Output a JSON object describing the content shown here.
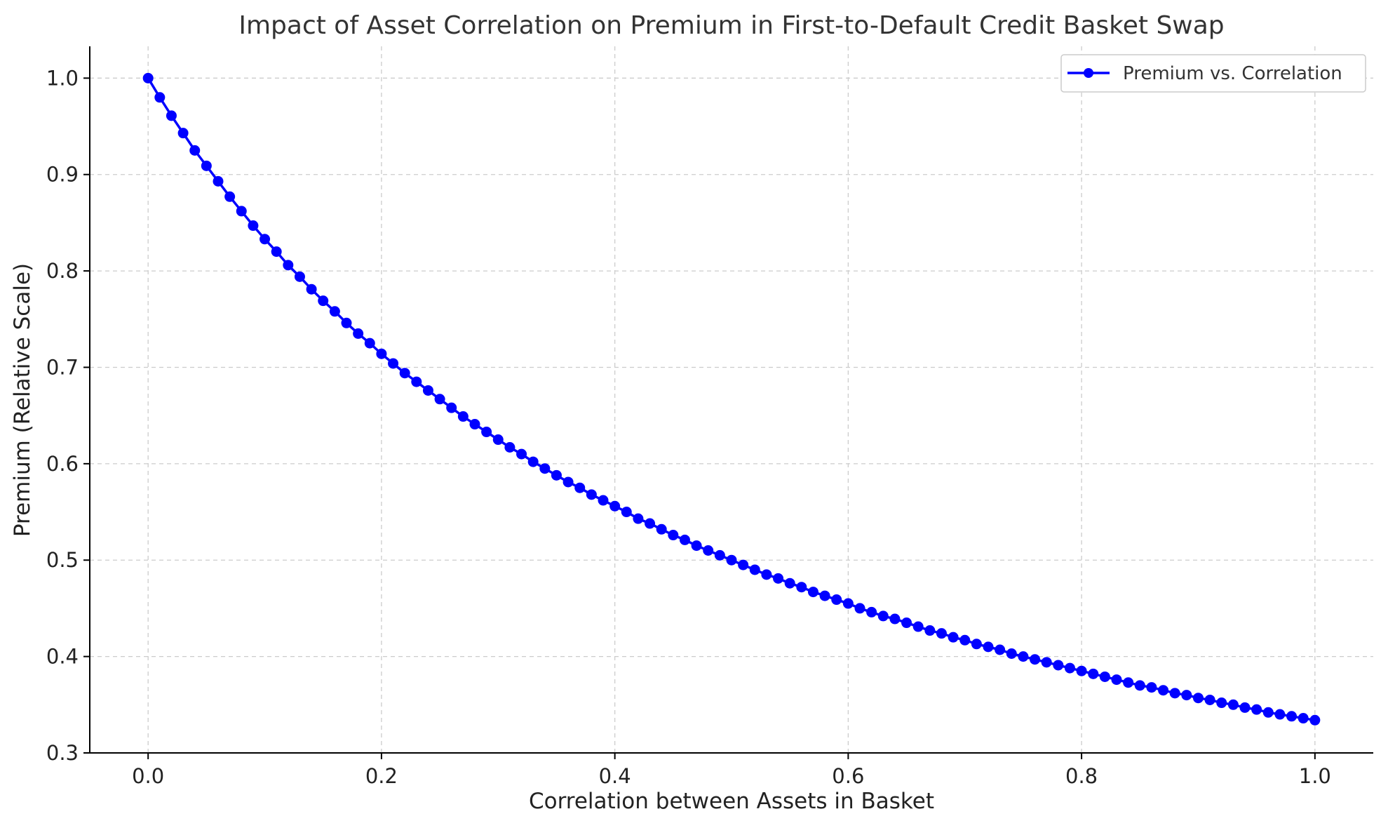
{
  "chart_data": {
    "type": "line",
    "title": "Impact of Asset Correlation on Premium in First-to-Default Credit Basket Swap",
    "xlabel": "Correlation between Assets in Basket",
    "ylabel": "Premium (Relative Scale)",
    "xlim": [
      -0.05,
      1.05
    ],
    "ylim": [
      0.3,
      1.033
    ],
    "x_ticks": [
      0.0,
      0.2,
      0.4,
      0.6,
      0.8,
      1.0
    ],
    "x_tick_labels": [
      "0.0",
      "0.2",
      "0.4",
      "0.6",
      "0.8",
      "1.0"
    ],
    "y_ticks": [
      0.3,
      0.4,
      0.5,
      0.6,
      0.7,
      0.8,
      0.9,
      1.0
    ],
    "y_tick_labels": [
      "0.3",
      "0.4",
      "0.5",
      "0.6",
      "0.7",
      "0.8",
      "0.9",
      "1.0"
    ],
    "grid": true,
    "legend_position": "top-right",
    "series": [
      {
        "name": "Premium vs. Correlation",
        "color": "#0000ff",
        "marker": "circle",
        "x": [
          0.0,
          0.01,
          0.02,
          0.03,
          0.04,
          0.05,
          0.06,
          0.07,
          0.08,
          0.09,
          0.1,
          0.11,
          0.12,
          0.13,
          0.14,
          0.15,
          0.16,
          0.17,
          0.18,
          0.19,
          0.2,
          0.21,
          0.22,
          0.23,
          0.24,
          0.25,
          0.26,
          0.27,
          0.28,
          0.29,
          0.3,
          0.31,
          0.32,
          0.33,
          0.34,
          0.35,
          0.36,
          0.37,
          0.38,
          0.39,
          0.4,
          0.41,
          0.42,
          0.43,
          0.44,
          0.45,
          0.46,
          0.47,
          0.48,
          0.49,
          0.5,
          0.51,
          0.52,
          0.53,
          0.54,
          0.55,
          0.56,
          0.57,
          0.58,
          0.59,
          0.6,
          0.61,
          0.62,
          0.63,
          0.64,
          0.65,
          0.66,
          0.67,
          0.68,
          0.69,
          0.7,
          0.71,
          0.72,
          0.73,
          0.74,
          0.75,
          0.76,
          0.77,
          0.78,
          0.79,
          0.8,
          0.81,
          0.82,
          0.83,
          0.84,
          0.85,
          0.86,
          0.87,
          0.88,
          0.89,
          0.9,
          0.91,
          0.92,
          0.93,
          0.94,
          0.95,
          0.96,
          0.97,
          0.98,
          0.99,
          1.0
        ],
        "y": [
          1.0,
          0.98,
          0.961,
          0.943,
          0.925,
          0.909,
          0.893,
          0.877,
          0.862,
          0.847,
          0.833,
          0.82,
          0.806,
          0.794,
          0.781,
          0.769,
          0.758,
          0.746,
          0.735,
          0.725,
          0.714,
          0.704,
          0.694,
          0.685,
          0.676,
          0.667,
          0.658,
          0.649,
          0.641,
          0.633,
          0.625,
          0.617,
          0.61,
          0.602,
          0.595,
          0.588,
          0.581,
          0.575,
          0.568,
          0.562,
          0.556,
          0.55,
          0.543,
          0.538,
          0.532,
          0.526,
          0.521,
          0.515,
          0.51,
          0.505,
          0.5,
          0.495,
          0.49,
          0.485,
          0.481,
          0.476,
          0.472,
          0.467,
          0.463,
          0.459,
          0.455,
          0.45,
          0.446,
          0.442,
          0.439,
          0.435,
          0.431,
          0.427,
          0.424,
          0.42,
          0.417,
          0.413,
          0.41,
          0.407,
          0.403,
          0.4,
          0.397,
          0.394,
          0.391,
          0.388,
          0.385,
          0.382,
          0.379,
          0.376,
          0.373,
          0.37,
          0.368,
          0.365,
          0.362,
          0.36,
          0.357,
          0.355,
          0.352,
          0.35,
          0.347,
          0.345,
          0.342,
          0.34,
          0.338,
          0.336,
          0.334
        ]
      }
    ]
  }
}
